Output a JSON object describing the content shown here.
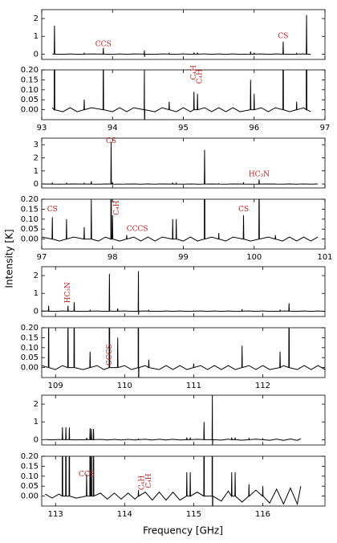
{
  "figure": {
    "ylabel": "Intensity [K]",
    "xlabel": "Frequency [GHz]",
    "line_color": "#000000",
    "annotation_color": "#b22222"
  },
  "chart_data": [
    {
      "type": "line",
      "xlim": [
        93,
        97
      ],
      "xticks": [
        93,
        94,
        95,
        96,
        97
      ],
      "panels": [
        {
          "ylim": [
            -0.3,
            2.5
          ],
          "yticks": [
            0,
            1,
            2
          ]
        },
        {
          "ylim": [
            -0.05,
            0.2
          ],
          "yticks": [
            {
              "value": -0.0,
              "label": "0.00"
            },
            {
              "value": 0.05,
              "label": "0.05"
            },
            {
              "value": 0.1,
              "label": "0.10"
            },
            {
              "value": 0.15,
              "label": "0.15"
            },
            {
              "value": 0.2,
              "label": "0.20"
            }
          ]
        }
      ],
      "x": [
        93.15,
        93.176,
        93.18,
        93.184,
        93.3,
        93.4,
        93.5,
        93.596,
        93.6,
        93.604,
        93.7,
        93.866,
        93.87,
        93.874,
        94.0,
        94.1,
        94.2,
        94.3,
        94.446,
        94.45,
        94.452,
        94.456,
        94.6,
        94.7,
        94.796,
        94.8,
        94.804,
        94.9,
        95.0,
        95.1,
        95.146,
        95.15,
        95.154,
        95.196,
        95.2,
        95.204,
        95.3,
        95.4,
        95.5,
        95.6,
        95.7,
        95.8,
        95.946,
        95.95,
        95.954,
        95.996,
        96.0,
        96.004,
        96.1,
        96.2,
        96.3,
        96.406,
        96.41,
        96.414,
        96.5,
        96.596,
        96.6,
        96.604,
        96.7,
        96.736,
        96.74,
        96.744,
        96.8
      ],
      "values": [
        0.01,
        0,
        1.6,
        0,
        -0.01,
        0.01,
        -0.01,
        0,
        0.05,
        0,
        0.01,
        0,
        0.35,
        0,
        -0.01,
        0.01,
        -0.01,
        0.01,
        0,
        0.2,
        -0.15,
        0,
        -0.01,
        0.01,
        0,
        0.04,
        0,
        -0.01,
        0.01,
        -0.01,
        0,
        0.09,
        0,
        0,
        0.08,
        0,
        0.01,
        -0.01,
        0.01,
        -0.01,
        0.01,
        -0.01,
        0,
        0.15,
        0,
        0,
        0.08,
        0,
        0.01,
        -0.01,
        0.01,
        0,
        0.7,
        0,
        -0.01,
        0,
        0.04,
        0,
        0.01,
        0,
        2.2,
        0,
        -0.01
      ],
      "annotations": [
        {
          "text": "CCS",
          "x": 93.87,
          "y": 0.55,
          "panel": 0,
          "vertical": false
        },
        {
          "text": "CS",
          "x": 96.41,
          "y": 1.0,
          "panel": 0,
          "vertical": false
        },
        {
          "text": "C₄H",
          "x": 95.15,
          "y": 0.15,
          "panel": 1,
          "vertical": true
        },
        {
          "text": "C₄H",
          "x": 95.23,
          "y": 0.13,
          "panel": 1,
          "vertical": true
        }
      ]
    },
    {
      "type": "line",
      "xlim": [
        97,
        101
      ],
      "xticks": [
        97,
        98,
        99,
        100,
        101
      ],
      "panels": [
        {
          "ylim": [
            -0.3,
            3.5
          ],
          "yticks": [
            0,
            1,
            2,
            3
          ]
        },
        {
          "ylim": [
            -0.05,
            0.2
          ],
          "yticks": [
            {
              "value": -0.0,
              "label": "0.00"
            },
            {
              "value": 0.05,
              "label": "0.05"
            },
            {
              "value": 0.1,
              "label": "0.10"
            },
            {
              "value": 0.15,
              "label": "0.15"
            },
            {
              "value": 0.2,
              "label": "0.20"
            }
          ]
        }
      ],
      "x": [
        97.0,
        97.146,
        97.15,
        97.154,
        97.25,
        97.346,
        97.35,
        97.354,
        97.45,
        97.596,
        97.6,
        97.604,
        97.696,
        97.7,
        97.704,
        97.8,
        97.9,
        97.976,
        97.98,
        97.984,
        97.996,
        98.0,
        98.004,
        98.1,
        98.196,
        98.2,
        98.204,
        98.3,
        98.4,
        98.5,
        98.6,
        98.7,
        98.846,
        98.85,
        98.854,
        98.896,
        98.9,
        98.904,
        99.0,
        99.1,
        99.2,
        99.296,
        99.3,
        99.304,
        99.4,
        99.496,
        99.5,
        99.504,
        99.6,
        99.7,
        99.846,
        99.85,
        99.854,
        99.95,
        100.066,
        100.07,
        100.074,
        100.2,
        100.296,
        100.3,
        100.304,
        100.4,
        100.5,
        100.6,
        100.7,
        100.8,
        100.9
      ],
      "values": [
        0.01,
        0,
        0.11,
        0,
        -0.01,
        0,
        0.1,
        0,
        0.01,
        0,
        0.06,
        0,
        0,
        0.2,
        0,
        -0.01,
        0.01,
        0,
        3.2,
        0,
        0,
        0.12,
        0,
        -0.01,
        0,
        0.02,
        0,
        0.01,
        -0.01,
        0.01,
        -0.01,
        0.01,
        0,
        0.1,
        0,
        0,
        0.1,
        0,
        -0.01,
        0.01,
        -0.01,
        0,
        2.6,
        0,
        0.01,
        0,
        0.03,
        0,
        -0.01,
        0.01,
        0,
        0.12,
        0,
        -0.01,
        0,
        0.35,
        0,
        0.01,
        0,
        0.02,
        0,
        -0.01,
        0.01,
        -0.01,
        0.01,
        -0.01,
        0.01
      ],
      "annotations": [
        {
          "text": "CS",
          "x": 97.98,
          "y": 3.3,
          "panel": 0,
          "vertical": false
        },
        {
          "text": "HC₃N",
          "x": 100.07,
          "y": 0.75,
          "panel": 0,
          "vertical": false
        },
        {
          "text": "CS",
          "x": 97.15,
          "y": 0.15,
          "panel": 1,
          "vertical": false
        },
        {
          "text": "C₄H",
          "x": 98.06,
          "y": 0.12,
          "panel": 1,
          "vertical": true
        },
        {
          "text": "CCCS",
          "x": 98.35,
          "y": 0.05,
          "panel": 1,
          "vertical": false
        },
        {
          "text": "CS",
          "x": 99.85,
          "y": 0.15,
          "panel": 1,
          "vertical": false
        }
      ]
    },
    {
      "type": "line",
      "xlim": [
        108.8,
        112.9
      ],
      "xticks": [
        109,
        110,
        111,
        112
      ],
      "panels": [
        {
          "ylim": [
            -0.3,
            2.5
          ],
          "yticks": [
            0,
            1,
            2
          ]
        },
        {
          "ylim": [
            -0.05,
            0.2
          ],
          "yticks": [
            {
              "value": -0.0,
              "label": "0.00"
            },
            {
              "value": 0.05,
              "label": "0.05"
            },
            {
              "value": 0.1,
              "label": "0.10"
            },
            {
              "value": 0.15,
              "label": "0.15"
            },
            {
              "value": 0.2,
              "label": "0.20"
            }
          ]
        }
      ],
      "x": [
        108.8,
        108.896,
        108.9,
        108.904,
        109.0,
        109.1,
        109.176,
        109.18,
        109.184,
        109.266,
        109.27,
        109.274,
        109.4,
        109.496,
        109.5,
        109.504,
        109.6,
        109.7,
        109.776,
        109.78,
        109.784,
        109.896,
        109.9,
        109.904,
        110.0,
        110.1,
        110.196,
        110.2,
        110.202,
        110.206,
        110.3,
        110.346,
        110.35,
        110.354,
        110.5,
        110.6,
        110.7,
        110.8,
        110.9,
        110.996,
        111.0,
        111.004,
        111.1,
        111.2,
        111.3,
        111.4,
        111.5,
        111.6,
        111.696,
        111.7,
        111.704,
        111.8,
        111.9,
        112.0,
        112.1,
        112.246,
        112.25,
        112.254,
        112.3,
        112.376,
        112.38,
        112.384,
        112.5,
        112.6,
        112.7,
        112.8,
        112.9
      ],
      "values": [
        0.01,
        0,
        0.3,
        0,
        -0.01,
        0.01,
        0,
        0.3,
        0,
        0,
        0.5,
        0,
        -0.01,
        0,
        0.08,
        0,
        0.01,
        -0.01,
        0,
        2.1,
        0,
        0,
        0.15,
        0,
        0.01,
        -0.01,
        0,
        2.25,
        -0.2,
        0,
        0.01,
        0,
        0.04,
        0,
        -0.01,
        0.01,
        -0.01,
        0.01,
        -0.01,
        0,
        0.02,
        0,
        0.01,
        -0.01,
        0.01,
        -0.01,
        0.01,
        -0.01,
        0,
        0.11,
        0,
        0.01,
        -0.01,
        0.01,
        -0.01,
        0,
        0.08,
        0,
        0.01,
        0,
        0.45,
        0,
        -0.01,
        0.01,
        -0.01,
        0.01,
        -0.01
      ],
      "annotations": [
        {
          "text": "HC₃N",
          "x": 109.18,
          "y": 0.45,
          "panel": 0,
          "vertical": true
        },
        {
          "text": "CCCS",
          "x": 109.78,
          "y": 0.01,
          "panel": 1,
          "vertical": true
        }
      ]
    },
    {
      "type": "line",
      "xlim": [
        112.8,
        116.9
      ],
      "xticks": [
        113,
        114,
        115,
        116
      ],
      "panels": [
        {
          "ylim": [
            -0.3,
            2.5
          ],
          "yticks": [
            0,
            1,
            2
          ]
        },
        {
          "ylim": [
            -0.05,
            0.2
          ],
          "yticks": [
            {
              "value": -0.0,
              "label": "0.00"
            },
            {
              "value": 0.05,
              "label": "0.05"
            },
            {
              "value": 0.1,
              "label": "0.10"
            },
            {
              "value": 0.15,
              "label": "0.15"
            },
            {
              "value": 0.2,
              "label": "0.20"
            }
          ]
        }
      ],
      "x": [
        112.85,
        112.95,
        113.05,
        113.096,
        113.1,
        113.104,
        113.146,
        113.15,
        113.154,
        113.196,
        113.2,
        113.204,
        113.3,
        113.446,
        113.45,
        113.454,
        113.496,
        113.5,
        113.504,
        113.516,
        113.52,
        113.524,
        113.546,
        113.55,
        113.554,
        113.65,
        113.75,
        113.85,
        113.95,
        114.05,
        114.15,
        114.196,
        114.2,
        114.204,
        114.3,
        114.4,
        114.5,
        114.6,
        114.7,
        114.8,
        114.896,
        114.9,
        114.904,
        114.946,
        114.95,
        114.954,
        115.05,
        115.146,
        115.15,
        115.154,
        115.266,
        115.27,
        115.272,
        115.276,
        115.4,
        115.5,
        115.546,
        115.55,
        115.554,
        115.596,
        115.6,
        115.604,
        115.7,
        115.796,
        115.8,
        115.804,
        115.9,
        115.996,
        116.0,
        116.004,
        116.1,
        116.2,
        116.3,
        116.4,
        116.5,
        116.55
      ],
      "values": [
        0.01,
        -0.01,
        0.01,
        0,
        0.7,
        0,
        0,
        0.7,
        0,
        0,
        0.68,
        0,
        -0.01,
        0,
        0.11,
        0,
        0,
        0.65,
        0,
        0,
        0.6,
        0,
        0,
        0.6,
        0,
        0.015,
        -0.015,
        0.015,
        -0.015,
        0.015,
        -0.015,
        0,
        0.03,
        0,
        0.02,
        -0.02,
        0.02,
        -0.02,
        0.02,
        -0.02,
        0,
        0.12,
        0,
        0,
        0.12,
        0,
        0.02,
        0,
        1.0,
        0,
        0,
        2.5,
        -0.3,
        0,
        -0.025,
        0.025,
        0,
        0.12,
        0,
        0,
        0.12,
        0,
        -0.03,
        0,
        0.06,
        0,
        0.03,
        0,
        0.05,
        0,
        -0.035,
        0.035,
        -0.04,
        0.04,
        -0.04,
        0.05
      ],
      "annotations": [
        {
          "text": "CCS",
          "x": 113.45,
          "y": 0.11,
          "panel": 1,
          "vertical": false
        },
        {
          "text": "C₄H",
          "x": 114.25,
          "y": 0.03,
          "panel": 1,
          "vertical": true
        },
        {
          "text": "C₄H",
          "x": 114.35,
          "y": 0.04,
          "panel": 1,
          "vertical": true
        }
      ]
    }
  ]
}
